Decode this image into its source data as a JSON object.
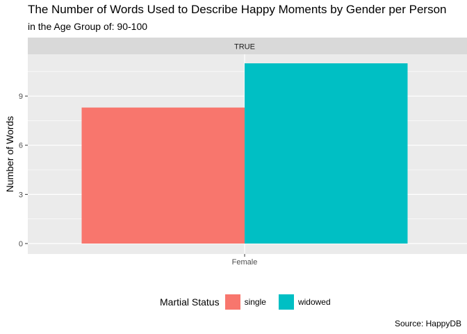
{
  "title": "The Number of Words Used to Describe Happy Moments by Gender per Person",
  "subtitle": "in the Age Group of: 90-100",
  "caption": "Source: HappyDB",
  "chart_data": {
    "type": "bar",
    "facet_label": "TRUE",
    "categories": [
      "Female"
    ],
    "series": [
      {
        "name": "single",
        "values": [
          8.3
        ],
        "color": "#F8766D"
      },
      {
        "name": "widowed",
        "values": [
          11.0
        ],
        "color": "#00BFC4"
      }
    ],
    "xlabel": "",
    "ylabel": "Number of Words",
    "ylim": [
      0,
      11.55
    ],
    "yticks": [
      0,
      3,
      6,
      9
    ],
    "grid": true,
    "legend": {
      "title": "Martial Status",
      "position": "bottom"
    }
  }
}
